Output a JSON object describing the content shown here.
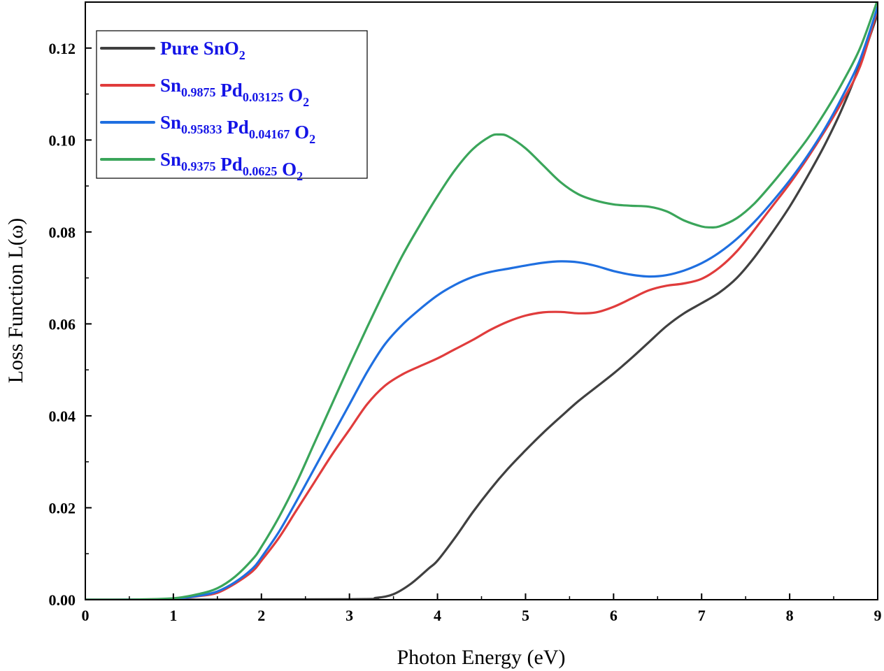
{
  "chart_data": {
    "type": "line",
    "xlabel": "Photon Energy (eV)",
    "ylabel": "Loss Function L(ω)",
    "xlim": [
      0,
      9
    ],
    "ylim": [
      0,
      0.13
    ],
    "x_ticks": [
      "0",
      "1",
      "2",
      "3",
      "4",
      "5",
      "6",
      "7",
      "8",
      "9"
    ],
    "y_ticks": [
      "0.00",
      "0.02",
      "0.04",
      "0.06",
      "0.08",
      "0.10",
      "0.12"
    ],
    "grid": false,
    "legend_position": "top-left",
    "legend_text_color": "#1414e6",
    "series": [
      {
        "name": "Pure SnO2",
        "label_parts": [
          {
            "t": "Pure SnO"
          },
          {
            "t": "2",
            "sub": true
          }
        ],
        "color": "#404040",
        "x": [
          0,
          3.0,
          3.3,
          3.5,
          3.7,
          3.9,
          4.0,
          4.2,
          4.4,
          4.6,
          4.8,
          5.0,
          5.2,
          5.4,
          5.6,
          5.8,
          6.0,
          6.2,
          6.4,
          6.6,
          6.8,
          7.0,
          7.2,
          7.4,
          7.6,
          7.8,
          8.0,
          8.2,
          8.4,
          8.6,
          8.8,
          9.0
        ],
        "y": [
          0,
          0.0001,
          0.0004,
          0.0012,
          0.0035,
          0.0068,
          0.0085,
          0.0135,
          0.019,
          0.024,
          0.0285,
          0.0325,
          0.0363,
          0.0398,
          0.0432,
          0.0462,
          0.0492,
          0.0525,
          0.056,
          0.0595,
          0.0623,
          0.0645,
          0.0668,
          0.07,
          0.0745,
          0.0798,
          0.0855,
          0.092,
          0.099,
          0.107,
          0.1165,
          0.1275
        ]
      },
      {
        "name": "Sn0.9875 Pd0.03125 O2",
        "label_parts": [
          {
            "t": "Sn"
          },
          {
            "t": "0.9875",
            "sub": true
          },
          {
            "t": " Pd"
          },
          {
            "t": "0.03125",
            "sub": true
          },
          {
            "t": " O"
          },
          {
            "t": "2",
            "sub": true
          }
        ],
        "color": "#e03c3c",
        "x": [
          0,
          0.5,
          1.0,
          1.3,
          1.5,
          1.7,
          1.9,
          2.0,
          2.2,
          2.4,
          2.6,
          2.8,
          3.0,
          3.2,
          3.4,
          3.6,
          3.8,
          4.0,
          4.2,
          4.4,
          4.6,
          4.8,
          5.0,
          5.2,
          5.4,
          5.6,
          5.8,
          6.0,
          6.2,
          6.4,
          6.6,
          6.8,
          7.0,
          7.2,
          7.4,
          7.6,
          7.8,
          8.0,
          8.2,
          8.4,
          8.6,
          8.8,
          9.0
        ],
        "y": [
          0,
          2e-05,
          0.0002,
          0.0008,
          0.0015,
          0.0035,
          0.0062,
          0.0085,
          0.0135,
          0.0195,
          0.0255,
          0.0315,
          0.037,
          0.0425,
          0.0465,
          0.049,
          0.0508,
          0.0525,
          0.0545,
          0.0565,
          0.0587,
          0.0605,
          0.0618,
          0.0625,
          0.0626,
          0.0623,
          0.0625,
          0.0637,
          0.0655,
          0.0673,
          0.0683,
          0.0688,
          0.0698,
          0.0722,
          0.0758,
          0.0805,
          0.0855,
          0.0905,
          0.096,
          0.102,
          0.1085,
          0.116,
          0.1285
        ]
      },
      {
        "name": "Sn0.95833 Pd0.04167 O2",
        "label_parts": [
          {
            "t": "Sn"
          },
          {
            "t": "0.95833",
            "sub": true
          },
          {
            "t": " Pd"
          },
          {
            "t": "0.04167",
            "sub": true
          },
          {
            "t": " O"
          },
          {
            "t": "2",
            "sub": true
          }
        ],
        "color": "#1f6fe0",
        "x": [
          0,
          0.5,
          1.0,
          1.3,
          1.5,
          1.7,
          1.9,
          2.0,
          2.2,
          2.4,
          2.6,
          2.8,
          3.0,
          3.2,
          3.4,
          3.6,
          3.8,
          4.0,
          4.2,
          4.4,
          4.6,
          4.8,
          5.0,
          5.2,
          5.4,
          5.6,
          5.8,
          6.0,
          6.2,
          6.4,
          6.6,
          6.8,
          7.0,
          7.2,
          7.4,
          7.6,
          7.8,
          8.0,
          8.2,
          8.4,
          8.6,
          8.8,
          9.0
        ],
        "y": [
          0,
          2e-05,
          0.0002,
          0.0009,
          0.0018,
          0.0038,
          0.0068,
          0.0092,
          0.0148,
          0.0215,
          0.0285,
          0.0355,
          0.0425,
          0.0495,
          0.0555,
          0.0598,
          0.0632,
          0.0662,
          0.0685,
          0.0702,
          0.0713,
          0.072,
          0.0727,
          0.0733,
          0.0736,
          0.0734,
          0.0726,
          0.0715,
          0.0707,
          0.0703,
          0.0706,
          0.0716,
          0.0732,
          0.0755,
          0.0785,
          0.0822,
          0.0865,
          0.0912,
          0.0965,
          0.1025,
          0.1095,
          0.1175,
          0.129
        ]
      },
      {
        "name": "Sn0.9375 Pd0.0625 O2",
        "label_parts": [
          {
            "t": "Sn"
          },
          {
            "t": "0.9375",
            "sub": true
          },
          {
            "t": " Pd"
          },
          {
            "t": "0.0625",
            "sub": true
          },
          {
            "t": " O"
          },
          {
            "t": "2",
            "sub": true
          }
        ],
        "color": "#3aa55a",
        "x": [
          0,
          0.5,
          1.0,
          1.3,
          1.5,
          1.7,
          1.9,
          2.0,
          2.2,
          2.4,
          2.6,
          2.8,
          3.0,
          3.2,
          3.4,
          3.6,
          3.8,
          4.0,
          4.2,
          4.4,
          4.6,
          4.7,
          4.8,
          5.0,
          5.2,
          5.4,
          5.6,
          5.8,
          6.0,
          6.2,
          6.4,
          6.6,
          6.8,
          7.0,
          7.1,
          7.2,
          7.4,
          7.6,
          7.8,
          8.0,
          8.2,
          8.4,
          8.6,
          8.8,
          9.0
        ],
        "y": [
          0,
          3e-05,
          0.0003,
          0.0013,
          0.0025,
          0.005,
          0.0088,
          0.0115,
          0.018,
          0.0255,
          0.034,
          0.0425,
          0.051,
          0.0592,
          0.0672,
          0.0748,
          0.0815,
          0.0878,
          0.0935,
          0.098,
          0.1008,
          0.1012,
          0.1008,
          0.0982,
          0.0945,
          0.0908,
          0.0882,
          0.0868,
          0.086,
          0.0857,
          0.0855,
          0.0845,
          0.0825,
          0.0812,
          0.081,
          0.0812,
          0.083,
          0.0862,
          0.0905,
          0.0952,
          0.1002,
          0.106,
          0.1125,
          0.12,
          0.1305
        ]
      }
    ]
  }
}
